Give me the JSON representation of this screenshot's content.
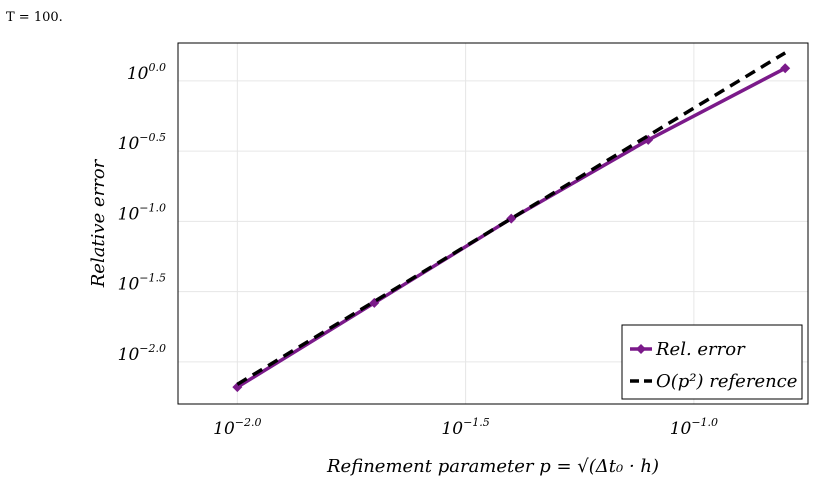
{
  "caption": "T = 100.",
  "chart_data": {
    "type": "line",
    "xlabel": "Refinement parameter p = √(Δt₀ · h)",
    "ylabel": "Relative error",
    "x_scale": "log10",
    "y_scale": "log10",
    "xlim_log10": [
      -2.13,
      -0.75
    ],
    "ylim_log10": [
      -2.3,
      0.27
    ],
    "x_ticks": [
      {
        "base": "10",
        "exp": "−2.0",
        "value": -2.0
      },
      {
        "base": "10",
        "exp": "−1.5",
        "value": -1.5
      },
      {
        "base": "10",
        "exp": "−1.0",
        "value": -1.0
      }
    ],
    "y_ticks": [
      {
        "base": "10",
        "exp": "0.0",
        "value": 0.0
      },
      {
        "base": "10",
        "exp": "−0.5",
        "value": -0.5
      },
      {
        "base": "10",
        "exp": "−1.0",
        "value": -1.0
      },
      {
        "base": "10",
        "exp": "−1.5",
        "value": -1.5
      },
      {
        "base": "10",
        "exp": "−2.0",
        "value": -2.0
      }
    ],
    "grid": true,
    "legend_position": "bottom-right",
    "series": [
      {
        "name": "Rel. error",
        "color": "#7b1a8a",
        "style": "solid-with-diamond-markers",
        "x_log10": [
          -2.0,
          -1.7,
          -1.4,
          -1.1,
          -0.8
        ],
        "y_log10": [
          -2.18,
          -1.58,
          -0.98,
          -0.42,
          0.09
        ]
      },
      {
        "name": "O(p²) reference",
        "color": "#000000",
        "style": "dashed",
        "x_log10": [
          -2.0,
          -0.8
        ],
        "y_log10": [
          -2.16,
          0.2
        ]
      }
    ]
  }
}
